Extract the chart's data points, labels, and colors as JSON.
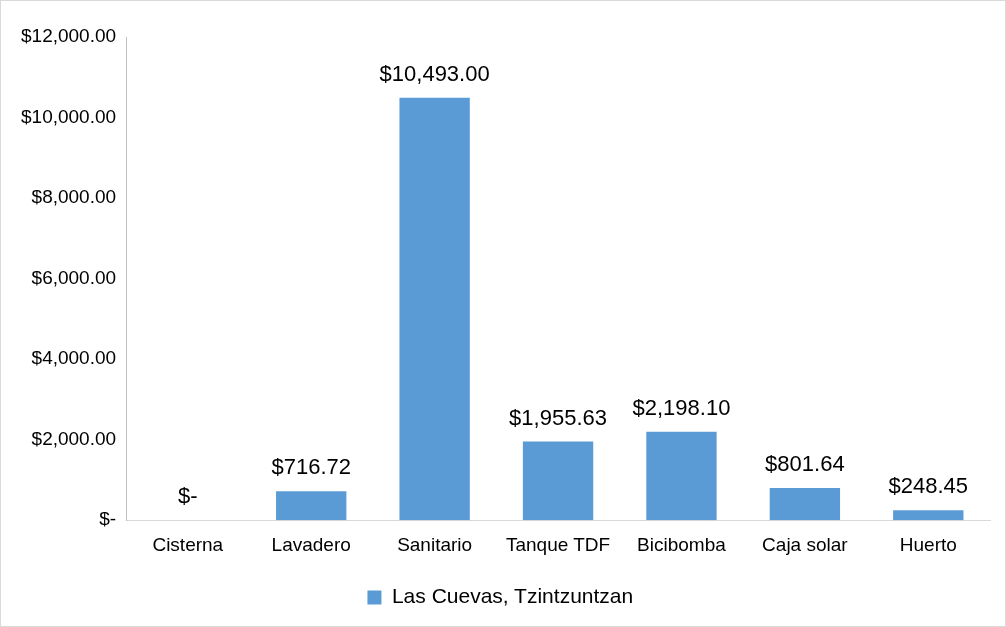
{
  "chart_data": {
    "type": "bar",
    "categories": [
      "Cisterna",
      "Lavadero",
      "Sanitario",
      "Tanque TDF",
      "Bicibomba",
      "Caja solar",
      "Huerto"
    ],
    "series": [
      {
        "name": "Las Cuevas, Tzintzuntzan",
        "color": "#5b9bd5",
        "values": [
          0,
          716.72,
          10493,
          1955.63,
          2198.1,
          801.64,
          248.45
        ],
        "value_labels": [
          "$-",
          "$716.72",
          "$10,493.00",
          "$1,955.63",
          "$2,198.10",
          "$801.64",
          "$248.45"
        ]
      }
    ],
    "ylim": [
      0,
      12000
    ],
    "yticks": [
      {
        "value": 0,
        "label": "$-"
      },
      {
        "value": 2000,
        "label": "$2,000.00"
      },
      {
        "value": 4000,
        "label": "$4,000.00"
      },
      {
        "value": 6000,
        "label": "$6,000.00"
      },
      {
        "value": 8000,
        "label": "$8,000.00"
      },
      {
        "value": 10000,
        "label": "$10,000.00"
      },
      {
        "value": 12000,
        "label": "$12,000.00"
      }
    ],
    "grid": false,
    "legend": "bottom"
  }
}
